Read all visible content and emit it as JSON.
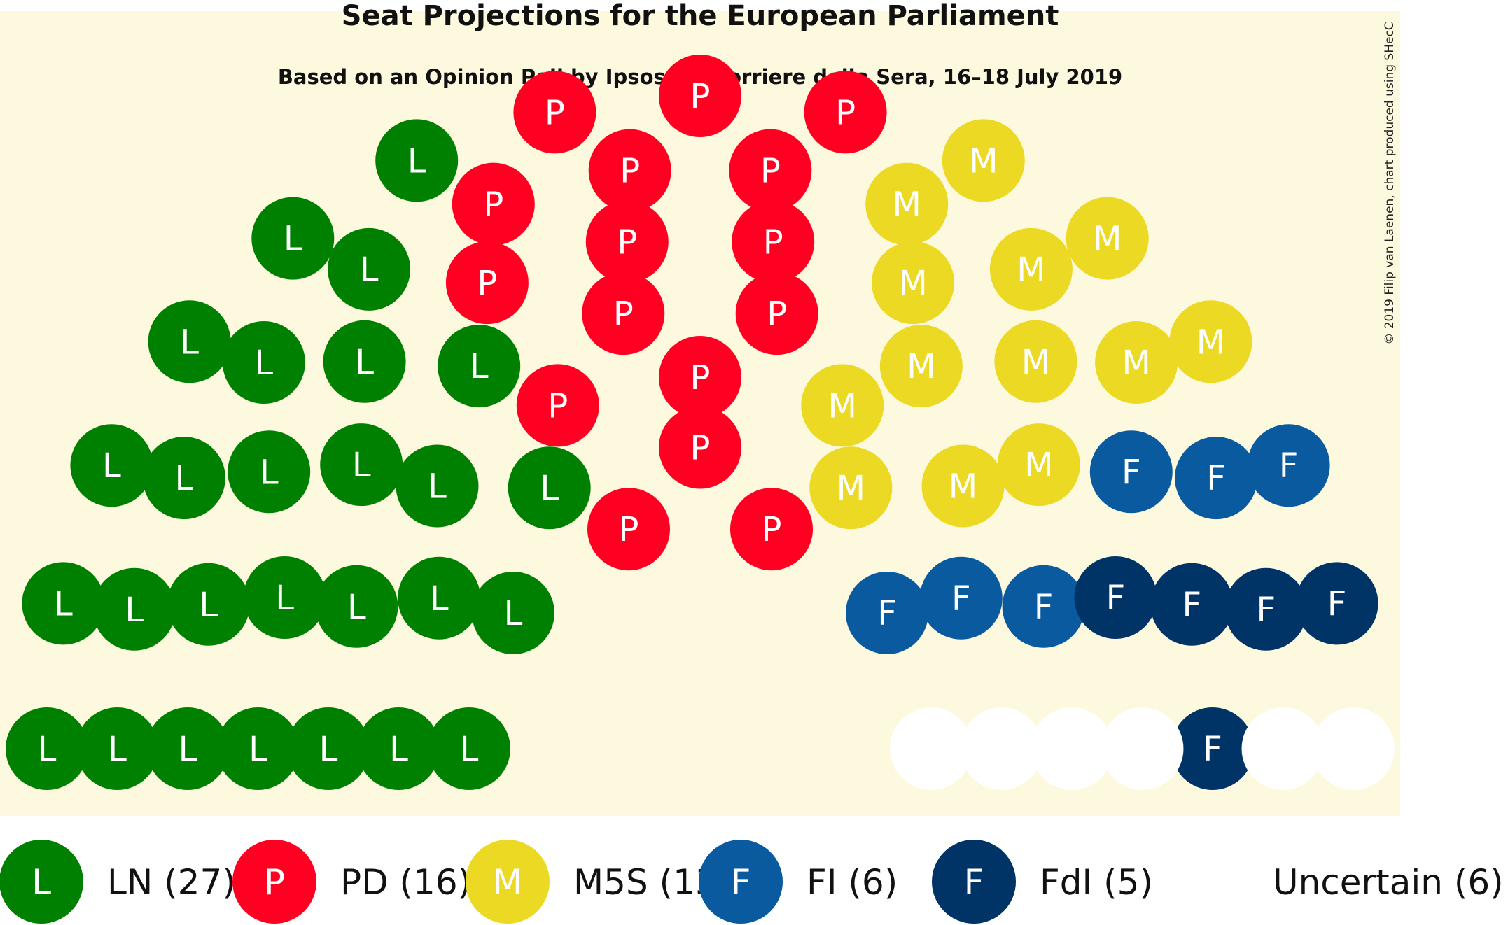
{
  "chart_data": {
    "type": "parliament",
    "title": "Seat Projections for the European Parliament",
    "subtitle": "Based on an Opinion Poll by Ipsos for Corriere della Sera, 16–18 July 2019",
    "credit": "© 2019 Filip van Laenen, chart produced using SHecC",
    "total_seats": 73,
    "parties": [
      {
        "name": "LN",
        "letter": "L",
        "seats": 27,
        "color": "#008000",
        "legend": "LN (27)"
      },
      {
        "name": "PD",
        "letter": "P",
        "seats": 16,
        "color": "#ff0022",
        "legend": "PD (16)"
      },
      {
        "name": "M5S",
        "letter": "M",
        "seats": 13,
        "color": "#ecd924",
        "legend": "M5S (13)"
      },
      {
        "name": "FI",
        "letter": "F",
        "seats": 6,
        "color": "#0a5aa0",
        "legend": "FI (6)"
      },
      {
        "name": "FdI",
        "letter": "F",
        "seats": 5,
        "color": "#003366",
        "legend": "FdI (5)"
      },
      {
        "name": "Uncertain",
        "letter": "",
        "seats": 6,
        "color": "#ffffff",
        "legend": "Uncertain (6)"
      }
    ],
    "background_color": "#fdf9df"
  }
}
